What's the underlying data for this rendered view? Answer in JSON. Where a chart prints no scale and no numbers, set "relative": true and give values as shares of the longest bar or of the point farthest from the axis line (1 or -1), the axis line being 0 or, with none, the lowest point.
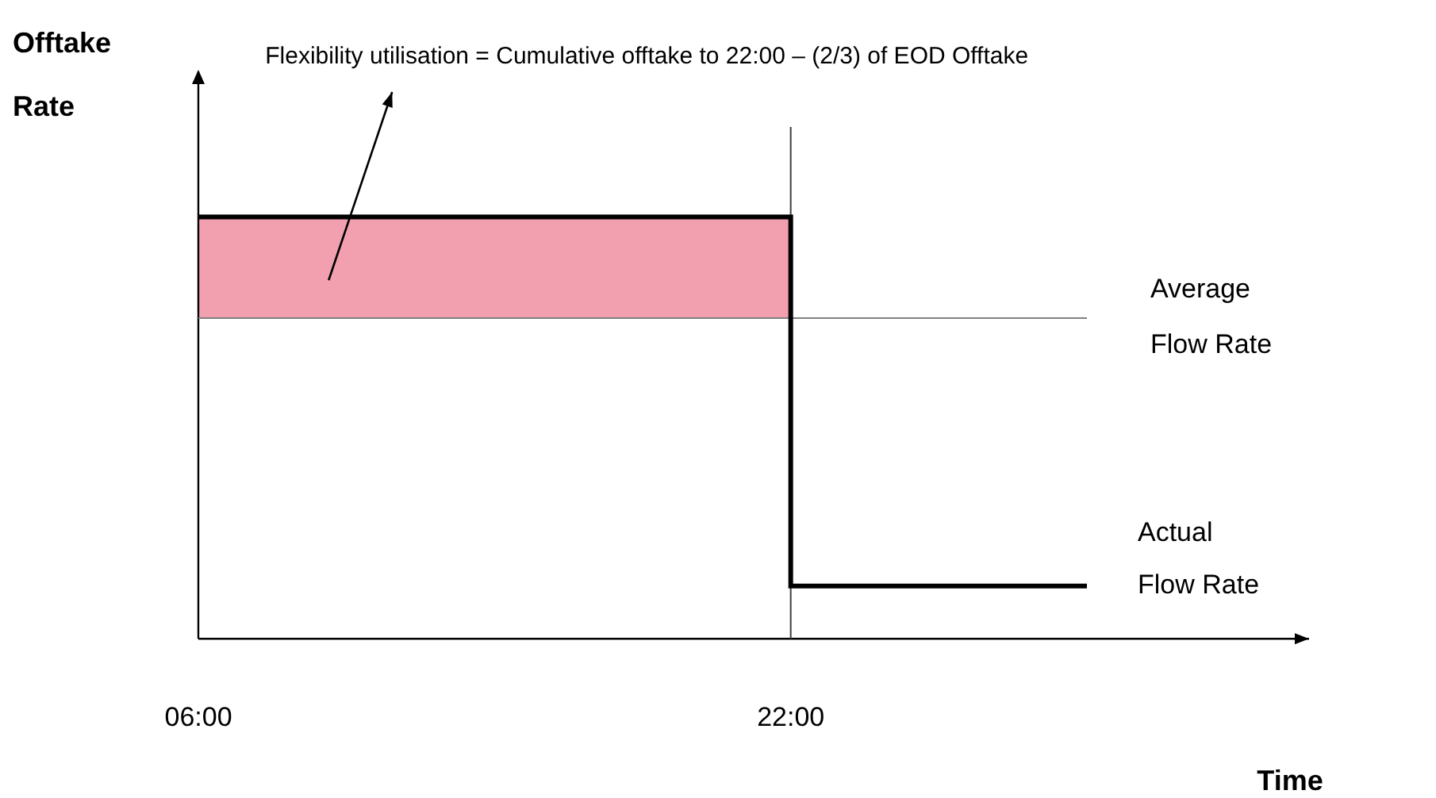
{
  "chart_data": {
    "type": "step",
    "relative": true,
    "xlabel": "Time",
    "ylabel": "Offtake Rate",
    "x": [
      6,
      22,
      30
    ],
    "xlim": [
      6,
      36
    ],
    "xticks": [
      {
        "value": 6,
        "label": "06:00"
      },
      {
        "value": 22,
        "label": "22:00"
      }
    ],
    "series": [
      {
        "name": "Actual Flow Rate",
        "color": "#000000",
        "values": [
          1,
          0.125,
          0.125
        ]
      },
      {
        "type": "area",
        "x": [
          6,
          22
        ],
        "color": "#f2a0b0",
        "values": [
          1,
          1
        ]
      }
    ],
    "ref_lines": [
      {
        "axis": "y",
        "value": 0.76,
        "label": "Average Flow Rate",
        "color": "#808080"
      },
      {
        "axis": "x",
        "value": 22,
        "color": "#404040"
      }
    ],
    "annotations": [
      "Flexibility utilisation = Cumulative offtake to 22:00 – (2/3) of EOD Offtake"
    ],
    "grid": false,
    "legend": false,
    "marker": "none",
    "line_style": "solid"
  }
}
